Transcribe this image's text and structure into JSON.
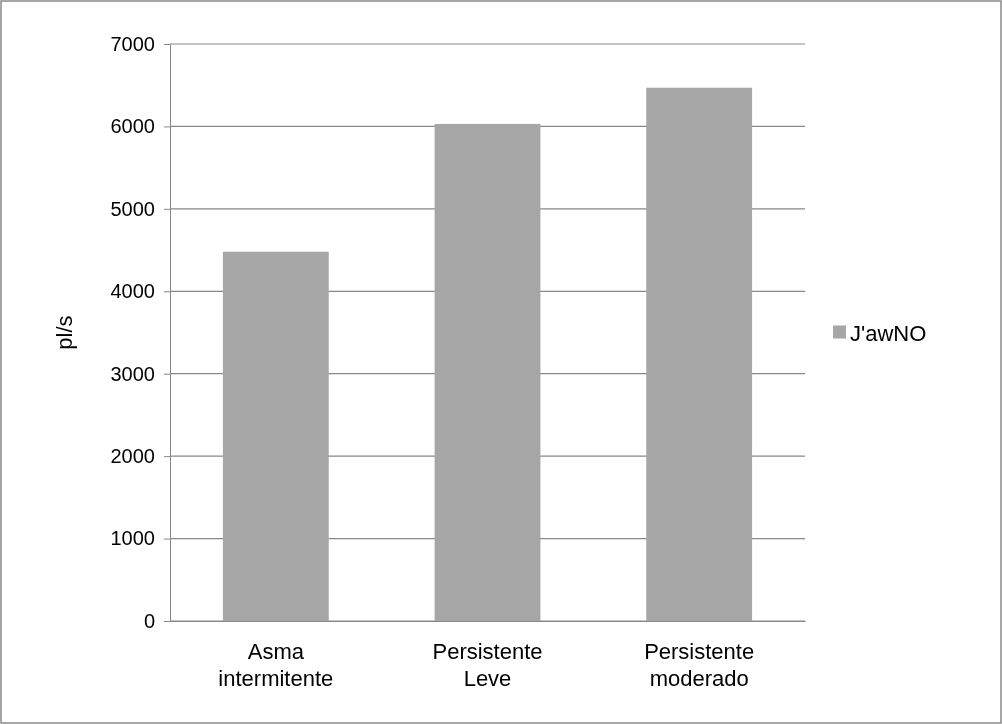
{
  "chart_data": {
    "type": "bar",
    "ylabel": "pl/s",
    "categories": [
      "Asma\nintermitente",
      "Persistente\nLeve",
      "Persistente\nmoderado"
    ],
    "series": [
      {
        "name": "J'awNO",
        "color": "#a6a6a6",
        "values": [
          4480,
          6030,
          6470
        ]
      }
    ],
    "ylim": [
      0,
      7000
    ],
    "yticks": [
      0,
      1000,
      2000,
      3000,
      4000,
      5000,
      6000,
      7000
    ],
    "grid": "y",
    "legend": "right"
  }
}
